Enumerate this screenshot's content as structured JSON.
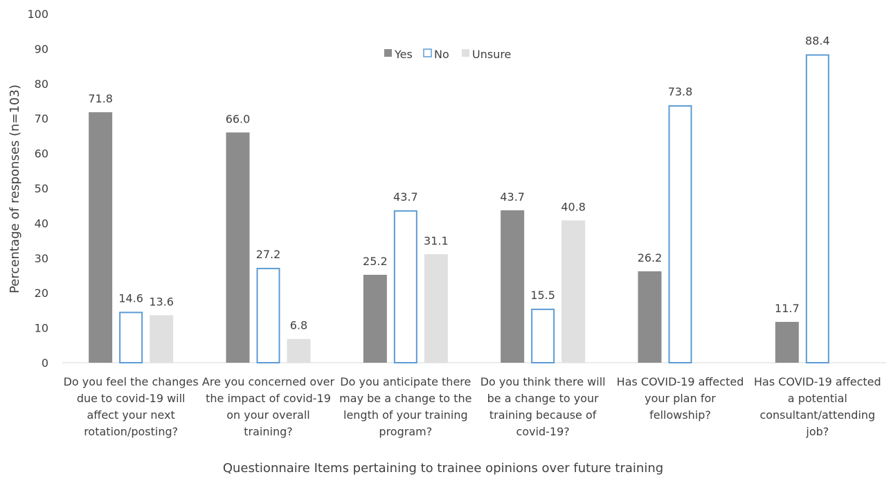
{
  "chart_data": {
    "type": "bar",
    "title": "",
    "xlabel": "Questionnaire Items pertaining to trainee opinions over future training",
    "ylabel": "Percentage of responses (n=103)",
    "ylim": [
      0,
      100
    ],
    "yticks": [
      0,
      10,
      20,
      30,
      40,
      50,
      60,
      70,
      80,
      90,
      100
    ],
    "grid": false,
    "legend_position": "top-center",
    "categories": [
      [
        "Do you feel the changes",
        "due to covid-19 will",
        "affect your next",
        "rotation/posting?"
      ],
      [
        "Are you concerned over",
        "the impact of covid-19",
        "on your overall",
        "training?"
      ],
      [
        "Do you anticipate there",
        "may be a change to the",
        "length of your training",
        "program?"
      ],
      [
        "Do you think there will",
        "be a change to your",
        "training because of",
        "covid-19?"
      ],
      [
        "Has COVID-19 affected",
        "your plan for",
        "fellowship?"
      ],
      [
        "Has COVID-19 affected",
        "a potential",
        "consultant/attending",
        "job?"
      ]
    ],
    "series": [
      {
        "name": "Yes",
        "color": "#8c8c8c",
        "style": "filled",
        "values": [
          71.8,
          66.0,
          25.2,
          43.7,
          26.2,
          11.7
        ]
      },
      {
        "name": "No",
        "color": "#5b9bd5",
        "style": "outline",
        "values": [
          14.6,
          27.2,
          43.7,
          15.5,
          73.8,
          88.4
        ]
      },
      {
        "name": "Unsure",
        "color": "#e0e0e0",
        "style": "filled",
        "values": [
          13.6,
          6.8,
          31.1,
          40.8,
          null,
          null
        ]
      }
    ]
  }
}
